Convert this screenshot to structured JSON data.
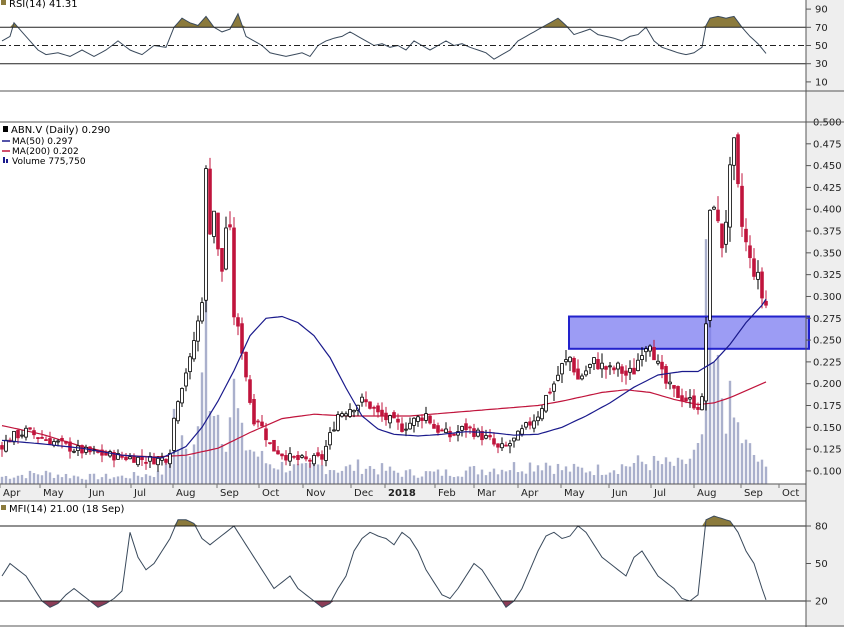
{
  "colors": {
    "up": "#000000",
    "down": "#c0143c",
    "ma50": "#1a1a8c",
    "ma200": "#c0143c",
    "volume": "#aab0cc",
    "zone_fill": "#7b7bf0",
    "zone_stroke": "#2222cc",
    "overbought": "#8b7a3c",
    "oversold": "#8b3c56",
    "indicator_line": "#3a4a5c"
  },
  "rsi_panel": {
    "legend": "RSI(14) 41.31",
    "ticks": [
      "90",
      "70",
      "50",
      "30",
      "10"
    ]
  },
  "price_panel": {
    "legend": {
      "main": "ABN.V (Daily) 0.290",
      "ma50": "MA(50) 0.297",
      "ma200": "MA(200) 0.202",
      "volume": "Volume 775,750"
    },
    "ticks": [
      "0.500",
      "0.475",
      "0.450",
      "0.425",
      "0.400",
      "0.375",
      "0.350",
      "0.325",
      "0.300",
      "0.275",
      "0.250",
      "0.225",
      "0.200",
      "0.175",
      "0.150",
      "0.125",
      "0.100"
    ]
  },
  "x_axis": {
    "labels": [
      "Apr",
      "May",
      "Jun",
      "Jul",
      "Aug",
      "Sep",
      "Oct",
      "Nov",
      "Dec",
      "2018",
      "Feb",
      "Mar",
      "Apr",
      "May",
      "Jun",
      "Jul",
      "Aug",
      "Sep",
      "Oct"
    ]
  },
  "mfi_panel": {
    "legend": "MFI(14) 21.00 (18 Sep)",
    "ticks": [
      "80",
      "50",
      "20"
    ]
  },
  "chart_data": {
    "type": "candlestick",
    "symbol": "ABN.V",
    "period": "Daily",
    "last_close": 0.29,
    "price_ylim": [
      0.085,
      0.5
    ],
    "rsi_ylim": [
      0,
      100
    ],
    "mfi_ylim": [
      0,
      100
    ],
    "rsi_levels": [
      30,
      50,
      70
    ],
    "mfi_levels": [
      20,
      80
    ],
    "resistance_zone": [
      0.24,
      0.277
    ],
    "price_path": [
      [
        0,
        0.13
      ],
      [
        3,
        0.14
      ],
      [
        6,
        0.145
      ],
      [
        9,
        0.14
      ],
      [
        12,
        0.135
      ],
      [
        15,
        0.13
      ],
      [
        18,
        0.125
      ],
      [
        21,
        0.122
      ],
      [
        24,
        0.12
      ],
      [
        27,
        0.118
      ],
      [
        30,
        0.116
      ],
      [
        33,
        0.115
      ],
      [
        36,
        0.113
      ],
      [
        39,
        0.113
      ],
      [
        41,
        0.115
      ],
      [
        42,
        0.125
      ],
      [
        43,
        0.16
      ],
      [
        44,
        0.185
      ],
      [
        45,
        0.2
      ],
      [
        46,
        0.215
      ],
      [
        47,
        0.225
      ],
      [
        48,
        0.25
      ],
      [
        49,
        0.27
      ],
      [
        50,
        0.3
      ],
      [
        51,
        0.44
      ],
      [
        52,
        0.38
      ],
      [
        53,
        0.4
      ],
      [
        54,
        0.35
      ],
      [
        55,
        0.33
      ],
      [
        56,
        0.38
      ],
      [
        57,
        0.37
      ],
      [
        58,
        0.28
      ],
      [
        59,
        0.26
      ],
      [
        60,
        0.24
      ],
      [
        61,
        0.21
      ],
      [
        62,
        0.18
      ],
      [
        63,
        0.16
      ],
      [
        64,
        0.16
      ],
      [
        65,
        0.15
      ],
      [
        66,
        0.14
      ],
      [
        67,
        0.13
      ],
      [
        68,
        0.125
      ],
      [
        70,
        0.12
      ],
      [
        72,
        0.115
      ],
      [
        74,
        0.113
      ],
      [
        76,
        0.112
      ],
      [
        78,
        0.113
      ],
      [
        80,
        0.115
      ],
      [
        82,
        0.14
      ],
      [
        84,
        0.165
      ],
      [
        86,
        0.17
      ],
      [
        88,
        0.175
      ],
      [
        90,
        0.18
      ],
      [
        92,
        0.175
      ],
      [
        94,
        0.165
      ],
      [
        96,
        0.16
      ],
      [
        98,
        0.155
      ],
      [
        100,
        0.15
      ],
      [
        102,
        0.155
      ],
      [
        104,
        0.16
      ],
      [
        106,
        0.165
      ],
      [
        108,
        0.15
      ],
      [
        110,
        0.145
      ],
      [
        112,
        0.14
      ],
      [
        114,
        0.145
      ],
      [
        116,
        0.15
      ],
      [
        118,
        0.145
      ],
      [
        120,
        0.14
      ],
      [
        122,
        0.135
      ],
      [
        124,
        0.125
      ],
      [
        126,
        0.128
      ],
      [
        128,
        0.135
      ],
      [
        130,
        0.145
      ],
      [
        132,
        0.155
      ],
      [
        134,
        0.165
      ],
      [
        136,
        0.185
      ],
      [
        138,
        0.2
      ],
      [
        140,
        0.22
      ],
      [
        142,
        0.23
      ],
      [
        144,
        0.205
      ],
      [
        146,
        0.215
      ],
      [
        148,
        0.225
      ],
      [
        150,
        0.22
      ],
      [
        152,
        0.215
      ],
      [
        154,
        0.218
      ],
      [
        156,
        0.21
      ],
      [
        158,
        0.215
      ],
      [
        160,
        0.24
      ],
      [
        162,
        0.25
      ],
      [
        164,
        0.22
      ],
      [
        166,
        0.2
      ],
      [
        168,
        0.19
      ],
      [
        170,
        0.185
      ],
      [
        172,
        0.18
      ],
      [
        174,
        0.175
      ],
      [
        175,
        0.18
      ],
      [
        176,
        0.27
      ],
      [
        177,
        0.39
      ],
      [
        178,
        0.41
      ],
      [
        179,
        0.38
      ],
      [
        180,
        0.36
      ],
      [
        181,
        0.39
      ],
      [
        182,
        0.44
      ],
      [
        183,
        0.47
      ],
      [
        184,
        0.42
      ],
      [
        185,
        0.38
      ],
      [
        186,
        0.36
      ],
      [
        187,
        0.34
      ],
      [
        188,
        0.33
      ],
      [
        189,
        0.32
      ],
      [
        190,
        0.3
      ],
      [
        191,
        0.29
      ]
    ],
    "ma50_path": [
      [
        0,
        0.135
      ],
      [
        10,
        0.131
      ],
      [
        20,
        0.126
      ],
      [
        30,
        0.118
      ],
      [
        40,
        0.115
      ],
      [
        46,
        0.128
      ],
      [
        50,
        0.15
      ],
      [
        54,
        0.18
      ],
      [
        58,
        0.215
      ],
      [
        62,
        0.255
      ],
      [
        66,
        0.275
      ],
      [
        70,
        0.277
      ],
      [
        74,
        0.27
      ],
      [
        78,
        0.255
      ],
      [
        82,
        0.23
      ],
      [
        86,
        0.195
      ],
      [
        90,
        0.163
      ],
      [
        94,
        0.148
      ],
      [
        98,
        0.142
      ],
      [
        104,
        0.14
      ],
      [
        110,
        0.142
      ],
      [
        116,
        0.145
      ],
      [
        122,
        0.144
      ],
      [
        128,
        0.141
      ],
      [
        134,
        0.142
      ],
      [
        140,
        0.15
      ],
      [
        146,
        0.163
      ],
      [
        152,
        0.178
      ],
      [
        158,
        0.196
      ],
      [
        164,
        0.21
      ],
      [
        170,
        0.214
      ],
      [
        174,
        0.214
      ],
      [
        178,
        0.225
      ],
      [
        182,
        0.245
      ],
      [
        186,
        0.27
      ],
      [
        190,
        0.29
      ],
      [
        191,
        0.297
      ]
    ],
    "ma200_path": [
      [
        0,
        0.152
      ],
      [
        10,
        0.142
      ],
      [
        20,
        0.128
      ],
      [
        30,
        0.118
      ],
      [
        38,
        0.116
      ],
      [
        46,
        0.118
      ],
      [
        54,
        0.126
      ],
      [
        62,
        0.144
      ],
      [
        70,
        0.16
      ],
      [
        78,
        0.165
      ],
      [
        86,
        0.163
      ],
      [
        94,
        0.163
      ],
      [
        102,
        0.163
      ],
      [
        110,
        0.166
      ],
      [
        118,
        0.169
      ],
      [
        126,
        0.172
      ],
      [
        134,
        0.175
      ],
      [
        140,
        0.18
      ],
      [
        146,
        0.186
      ],
      [
        150,
        0.19
      ],
      [
        156,
        0.193
      ],
      [
        162,
        0.19
      ],
      [
        168,
        0.182
      ],
      [
        174,
        0.176
      ],
      [
        178,
        0.178
      ],
      [
        182,
        0.184
      ],
      [
        186,
        0.192
      ],
      [
        191,
        0.202
      ]
    ],
    "rsi_path": [
      [
        0,
        55
      ],
      [
        2,
        60
      ],
      [
        3,
        75
      ],
      [
        5,
        65
      ],
      [
        7,
        55
      ],
      [
        9,
        45
      ],
      [
        11,
        40
      ],
      [
        14,
        42
      ],
      [
        17,
        38
      ],
      [
        20,
        45
      ],
      [
        23,
        38
      ],
      [
        26,
        45
      ],
      [
        29,
        55
      ],
      [
        32,
        45
      ],
      [
        35,
        40
      ],
      [
        38,
        50
      ],
      [
        41,
        48
      ],
      [
        43,
        70
      ],
      [
        45,
        80
      ],
      [
        47,
        75
      ],
      [
        49,
        72
      ],
      [
        51,
        82
      ],
      [
        53,
        70
      ],
      [
        55,
        65
      ],
      [
        57,
        68
      ],
      [
        59,
        85
      ],
      [
        61,
        60
      ],
      [
        63,
        55
      ],
      [
        65,
        50
      ],
      [
        67,
        42
      ],
      [
        69,
        40
      ],
      [
        71,
        38
      ],
      [
        73,
        40
      ],
      [
        75,
        42
      ],
      [
        77,
        38
      ],
      [
        79,
        50
      ],
      [
        81,
        55
      ],
      [
        83,
        58
      ],
      [
        85,
        60
      ],
      [
        87,
        65
      ],
      [
        89,
        60
      ],
      [
        91,
        55
      ],
      [
        93,
        50
      ],
      [
        95,
        52
      ],
      [
        97,
        48
      ],
      [
        99,
        50
      ],
      [
        101,
        45
      ],
      [
        103,
        55
      ],
      [
        105,
        50
      ],
      [
        107,
        45
      ],
      [
        109,
        50
      ],
      [
        111,
        55
      ],
      [
        113,
        50
      ],
      [
        115,
        52
      ],
      [
        117,
        48
      ],
      [
        119,
        45
      ],
      [
        121,
        42
      ],
      [
        123,
        35
      ],
      [
        125,
        40
      ],
      [
        127,
        45
      ],
      [
        129,
        55
      ],
      [
        131,
        60
      ],
      [
        133,
        65
      ],
      [
        135,
        70
      ],
      [
        137,
        75
      ],
      [
        139,
        80
      ],
      [
        141,
        72
      ],
      [
        143,
        62
      ],
      [
        145,
        65
      ],
      [
        147,
        68
      ],
      [
        149,
        62
      ],
      [
        151,
        60
      ],
      [
        153,
        58
      ],
      [
        155,
        55
      ],
      [
        157,
        60
      ],
      [
        159,
        62
      ],
      [
        161,
        70
      ],
      [
        163,
        55
      ],
      [
        165,
        48
      ],
      [
        167,
        45
      ],
      [
        169,
        42
      ],
      [
        171,
        40
      ],
      [
        173,
        42
      ],
      [
        175,
        48
      ],
      [
        176,
        72
      ],
      [
        177,
        80
      ],
      [
        179,
        82
      ],
      [
        181,
        80
      ],
      [
        183,
        82
      ],
      [
        185,
        70
      ],
      [
        187,
        60
      ],
      [
        189,
        52
      ],
      [
        191,
        41.31
      ]
    ],
    "mfi_path": [
      [
        0,
        40
      ],
      [
        2,
        50
      ],
      [
        4,
        45
      ],
      [
        6,
        40
      ],
      [
        8,
        30
      ],
      [
        10,
        20
      ],
      [
        12,
        15
      ],
      [
        14,
        18
      ],
      [
        16,
        25
      ],
      [
        18,
        30
      ],
      [
        20,
        25
      ],
      [
        22,
        20
      ],
      [
        24,
        15
      ],
      [
        26,
        18
      ],
      [
        28,
        22
      ],
      [
        30,
        28
      ],
      [
        32,
        75
      ],
      [
        34,
        55
      ],
      [
        36,
        45
      ],
      [
        38,
        50
      ],
      [
        40,
        60
      ],
      [
        42,
        70
      ],
      [
        44,
        85
      ],
      [
        46,
        85
      ],
      [
        48,
        82
      ],
      [
        50,
        70
      ],
      [
        52,
        65
      ],
      [
        54,
        70
      ],
      [
        56,
        75
      ],
      [
        58,
        80
      ],
      [
        60,
        70
      ],
      [
        62,
        60
      ],
      [
        64,
        50
      ],
      [
        66,
        40
      ],
      [
        68,
        30
      ],
      [
        70,
        35
      ],
      [
        72,
        40
      ],
      [
        74,
        30
      ],
      [
        76,
        25
      ],
      [
        78,
        20
      ],
      [
        80,
        15
      ],
      [
        82,
        18
      ],
      [
        84,
        30
      ],
      [
        86,
        40
      ],
      [
        88,
        60
      ],
      [
        90,
        70
      ],
      [
        92,
        75
      ],
      [
        94,
        72
      ],
      [
        96,
        70
      ],
      [
        98,
        65
      ],
      [
        100,
        75
      ],
      [
        102,
        70
      ],
      [
        104,
        60
      ],
      [
        106,
        45
      ],
      [
        108,
        35
      ],
      [
        110,
        25
      ],
      [
        112,
        22
      ],
      [
        114,
        30
      ],
      [
        116,
        40
      ],
      [
        118,
        50
      ],
      [
        120,
        45
      ],
      [
        122,
        35
      ],
      [
        124,
        25
      ],
      [
        126,
        15
      ],
      [
        128,
        20
      ],
      [
        130,
        30
      ],
      [
        132,
        45
      ],
      [
        134,
        60
      ],
      [
        136,
        72
      ],
      [
        138,
        75
      ],
      [
        140,
        70
      ],
      [
        142,
        72
      ],
      [
        144,
        80
      ],
      [
        146,
        75
      ],
      [
        148,
        65
      ],
      [
        150,
        55
      ],
      [
        152,
        50
      ],
      [
        154,
        45
      ],
      [
        156,
        40
      ],
      [
        158,
        55
      ],
      [
        160,
        60
      ],
      [
        162,
        50
      ],
      [
        164,
        40
      ],
      [
        166,
        35
      ],
      [
        168,
        30
      ],
      [
        170,
        22
      ],
      [
        172,
        20
      ],
      [
        174,
        25
      ],
      [
        175,
        55
      ],
      [
        176,
        85
      ],
      [
        178,
        88
      ],
      [
        180,
        86
      ],
      [
        182,
        84
      ],
      [
        184,
        75
      ],
      [
        186,
        60
      ],
      [
        188,
        50
      ],
      [
        190,
        30
      ],
      [
        191,
        21
      ]
    ],
    "volume_path": [
      [
        0,
        0.02
      ],
      [
        10,
        0.03
      ],
      [
        20,
        0.02
      ],
      [
        30,
        0.02
      ],
      [
        40,
        0.03
      ],
      [
        43,
        0.15
      ],
      [
        45,
        0.1
      ],
      [
        48,
        0.1
      ],
      [
        50,
        0.25
      ],
      [
        51,
        0.45
      ],
      [
        52,
        0.3
      ],
      [
        54,
        0.2
      ],
      [
        56,
        0.15
      ],
      [
        58,
        0.25
      ],
      [
        60,
        0.12
      ],
      [
        62,
        0.1
      ],
      [
        64,
        0.08
      ],
      [
        66,
        0.06
      ],
      [
        70,
        0.05
      ],
      [
        75,
        0.04
      ],
      [
        80,
        0.05
      ],
      [
        85,
        0.04
      ],
      [
        90,
        0.05
      ],
      [
        100,
        0.03
      ],
      [
        110,
        0.03
      ],
      [
        120,
        0.04
      ],
      [
        130,
        0.05
      ],
      [
        136,
        0.06
      ],
      [
        140,
        0.04
      ],
      [
        150,
        0.04
      ],
      [
        160,
        0.06
      ],
      [
        170,
        0.05
      ],
      [
        175,
        0.1
      ],
      [
        176,
        0.65
      ],
      [
        177,
        0.45
      ],
      [
        178,
        0.3
      ],
      [
        180,
        0.25
      ],
      [
        182,
        0.2
      ],
      [
        184,
        0.15
      ],
      [
        186,
        0.1
      ],
      [
        188,
        0.08
      ],
      [
        190,
        0.05
      ],
      [
        191,
        0.04
      ]
    ]
  }
}
